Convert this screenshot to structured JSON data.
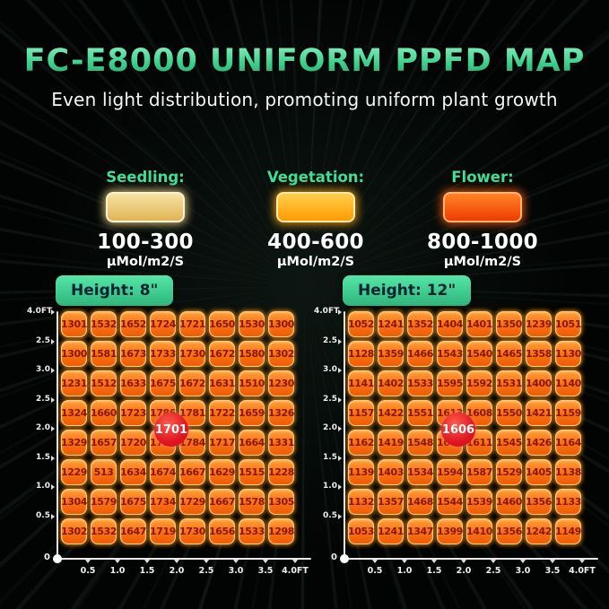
{
  "title": "FC-E8000 UNIFORM PPFD MAP",
  "subtitle": "Even light distribution, promoting uniform plant growth",
  "legend": {
    "items": [
      {
        "label": "Seedling:",
        "range": "100-300",
        "unit": "μMol/m2/S",
        "swatch_top": "#f7e3a2",
        "swatch_bottom": "#e0b456",
        "swatch_border": "#fdf3d2",
        "swatch_glow": "rgba(248,220,140,0.8)"
      },
      {
        "label": "Vegetation:",
        "range": "400-600",
        "unit": "μMol/m2/S",
        "swatch_top": "#ffcf4d",
        "swatch_bottom": "#ff9c00",
        "swatch_border": "#ffe8ae",
        "swatch_glow": "rgba(255,170,20,0.8)"
      },
      {
        "label": "Flower:",
        "range": "800-1000",
        "unit": "μMol/m2/S",
        "swatch_top": "#ff8427",
        "swatch_bottom": "#ee3c00",
        "swatch_border": "#ffb377",
        "swatch_glow": "rgba(255,95,20,0.8)"
      }
    ]
  },
  "maps": [
    {
      "height_label": "Height: 8\"",
      "origin_label": "0"
    },
    {
      "height_label": "Height: 12\"",
      "origin_label": "0"
    }
  ],
  "chart_data": [
    {
      "type": "heatmap",
      "title": "Height: 8\"",
      "x_ticks": [
        "0",
        "0.5",
        "1.0",
        "1.5",
        "2.0",
        "2.5",
        "3.0",
        "3.5",
        "4.0FT"
      ],
      "y_ticks": [
        "4.0FT",
        "2.5",
        "3.0",
        "2.5",
        "2.0",
        "1.5",
        "1.0",
        "0.5",
        "0"
      ],
      "center_value": 1701,
      "unit": "μMol/m2/S",
      "values": [
        [
          1301,
          1532,
          1652,
          1724,
          1721,
          1650,
          1530,
          1300
        ],
        [
          1300,
          1581,
          1673,
          1733,
          1730,
          1672,
          1580,
          1302
        ],
        [
          1231,
          1512,
          1633,
          1675,
          1672,
          1631,
          1510,
          1230
        ],
        [
          1324,
          1660,
          1723,
          1786,
          1781,
          1722,
          1659,
          1326
        ],
        [
          1329,
          1657,
          1720,
          1778,
          1784,
          1717,
          1664,
          1331
        ],
        [
          1229,
          513,
          1634,
          1674,
          1667,
          1629,
          1515,
          1228
        ],
        [
          1304,
          1579,
          1675,
          1734,
          1729,
          1667,
          1578,
          1305
        ],
        [
          1302,
          1532,
          1647,
          1719,
          1730,
          1656,
          1533,
          1298
        ]
      ]
    },
    {
      "type": "heatmap",
      "title": "Height: 12\"",
      "x_ticks": [
        "0",
        "0.5",
        "1.0",
        "1.5",
        "2.0",
        "2.5",
        "3.0",
        "3.5",
        "4.0FT"
      ],
      "y_ticks": [
        "4.0FT",
        "2.5",
        "3.0",
        "2.5",
        "2.0",
        "1.5",
        "1.0",
        "0.5",
        "0"
      ],
      "center_value": 1606,
      "unit": "μMol/m2/S",
      "values": [
        [
          1052,
          1241,
          1352,
          1404,
          1401,
          1350,
          1239,
          1051
        ],
        [
          1128,
          1359,
          1466,
          1543,
          1540,
          1465,
          1358,
          1130
        ],
        [
          1141,
          1402,
          1533,
          1595,
          1592,
          1531,
          1400,
          1140
        ],
        [
          1157,
          1422,
          1551,
          1613,
          1608,
          1550,
          1421,
          1159
        ],
        [
          1162,
          1419,
          1548,
          1605,
          1611,
          1545,
          1426,
          1164
        ],
        [
          1139,
          1403,
          1534,
          1594,
          1587,
          1529,
          1405,
          1138
        ],
        [
          1132,
          1357,
          1468,
          1544,
          1539,
          1460,
          1356,
          1133
        ],
        [
          1053,
          1241,
          1347,
          1399,
          1410,
          1356,
          1242,
          1149
        ]
      ]
    }
  ],
  "colors": {
    "accent_green": "#3fd08d",
    "legend_label_green": "#43dc96",
    "cell_orange": "#f97316",
    "cell_text_red": "#8c1500",
    "center_badge_red": "#e01722",
    "height_badge_green": "#3ecc8e",
    "background": "#030504",
    "axis_white": "#e9e9e9"
  }
}
